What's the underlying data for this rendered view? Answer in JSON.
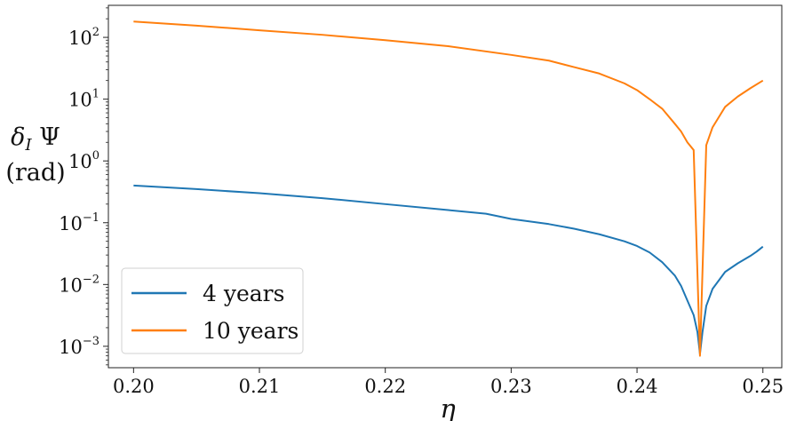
{
  "chart_data": {
    "type": "line",
    "xlabel": "η",
    "ylabel_line1": "δ_I Ψ",
    "ylabel_line2": "(rad)",
    "xlim": [
      0.198,
      0.2515
    ],
    "ylim": [
      0.00045,
      330
    ],
    "yscale": "log",
    "grid": false,
    "legend_placement": "lower-left",
    "x_ticks": [
      {
        "value": 0.2,
        "label": "0.20"
      },
      {
        "value": 0.21,
        "label": "0.21"
      },
      {
        "value": 0.22,
        "label": "0.22"
      },
      {
        "value": 0.23,
        "label": "0.23"
      },
      {
        "value": 0.24,
        "label": "0.24"
      },
      {
        "value": 0.25,
        "label": "0.25"
      }
    ],
    "y_ticks": [
      {
        "value": 0.001,
        "base": "10",
        "exp": "−3"
      },
      {
        "value": 0.01,
        "base": "10",
        "exp": "−2"
      },
      {
        "value": 0.1,
        "base": "10",
        "exp": "−1"
      },
      {
        "value": 1,
        "base": "10",
        "exp": "0"
      },
      {
        "value": 10,
        "base": "10",
        "exp": "1"
      },
      {
        "value": 100,
        "base": "10",
        "exp": "2"
      }
    ],
    "series": [
      {
        "name": "4 years",
        "color": "#1f77b4",
        "x": [
          0.2,
          0.205,
          0.21,
          0.215,
          0.22,
          0.225,
          0.228,
          0.23,
          0.233,
          0.235,
          0.237,
          0.239,
          0.24,
          0.241,
          0.242,
          0.243,
          0.2435,
          0.244,
          0.2445,
          0.2448,
          0.245,
          0.2452,
          0.2455,
          0.246,
          0.247,
          0.248,
          0.249,
          0.2495,
          0.25
        ],
        "y": [
          0.4,
          0.35,
          0.3,
          0.25,
          0.2,
          0.16,
          0.14,
          0.115,
          0.095,
          0.08,
          0.065,
          0.05,
          0.042,
          0.033,
          0.023,
          0.014,
          0.0095,
          0.0055,
          0.0032,
          0.0017,
          0.00075,
          0.0017,
          0.0045,
          0.0085,
          0.016,
          0.022,
          0.029,
          0.034,
          0.041
        ]
      },
      {
        "name": "10 years",
        "color": "#ff7f0e",
        "x": [
          0.2,
          0.205,
          0.21,
          0.215,
          0.22,
          0.225,
          0.23,
          0.233,
          0.235,
          0.237,
          0.239,
          0.24,
          0.241,
          0.242,
          0.243,
          0.2435,
          0.244,
          0.2445,
          0.245,
          0.2455,
          0.246,
          0.247,
          0.248,
          0.249,
          0.25
        ],
        "y": [
          180,
          155,
          130,
          110,
          90,
          72,
          52,
          42,
          33,
          26,
          18,
          14,
          10,
          7,
          4,
          3,
          2.0,
          1.5,
          0.0007,
          1.8,
          3.5,
          7.5,
          11,
          15,
          20
        ]
      }
    ]
  }
}
